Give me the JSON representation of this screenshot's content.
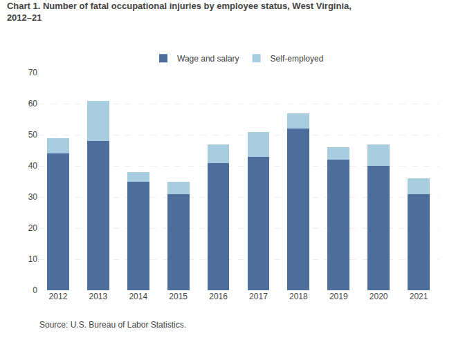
{
  "chart_data": {
    "type": "bar",
    "title": "Chart 1. Number of fatal occupational injuries by employee status, West Virginia,\n2012–21",
    "annotations": [
      "Source: U.S. Bureau of Labor Statistics."
    ],
    "categories": [
      "2012",
      "2013",
      "2014",
      "2015",
      "2016",
      "2017",
      "2018",
      "2019",
      "2020",
      "2021"
    ],
    "series": [
      {
        "name": "Wage and salary",
        "color": "#4d6e9a",
        "values": [
          44,
          48,
          35,
          31,
          41,
          43,
          52,
          42,
          40,
          31
        ]
      },
      {
        "name": "Self-employed",
        "color": "#a8cce0",
        "values": [
          5,
          13,
          3,
          4,
          6,
          8,
          5,
          4,
          7,
          5
        ]
      }
    ],
    "stacked": true,
    "ylim": [
      0,
      70
    ],
    "yticks": [
      0,
      10,
      20,
      30,
      40,
      50,
      60,
      70
    ],
    "grid": true,
    "legend": "top"
  }
}
